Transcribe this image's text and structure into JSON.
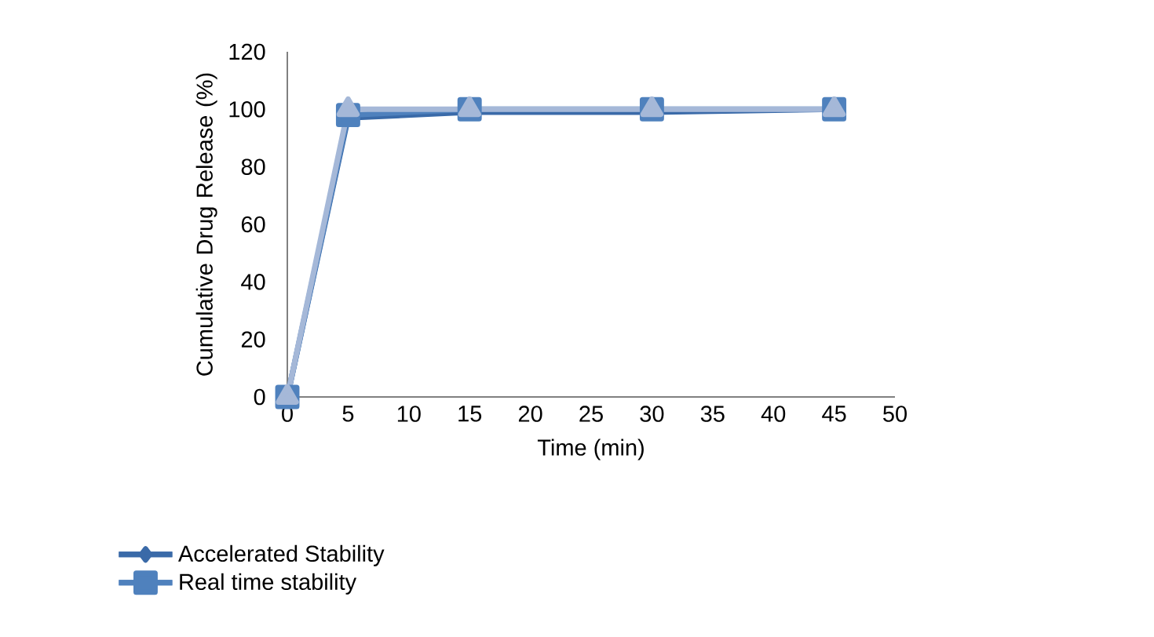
{
  "chart_data": {
    "type": "line",
    "xlabel": "Time (min)",
    "ylabel": "Cumulative Drug Release (%)",
    "x": [
      0,
      5,
      15,
      30,
      45
    ],
    "xlim": [
      0,
      50
    ],
    "xticks": [
      0,
      5,
      10,
      15,
      20,
      25,
      30,
      35,
      40,
      45,
      50
    ],
    "ylim": [
      0,
      120
    ],
    "yticks": [
      0,
      20,
      40,
      60,
      80,
      100,
      120
    ],
    "grid": false,
    "legend": "bottom left",
    "series": [
      {
        "name": "Accelerated Stability",
        "color": "#3a6aa8",
        "marker": "diamond",
        "values": [
          0,
          97,
          99,
          99,
          100
        ]
      },
      {
        "name": "Real time stability",
        "color": "#4f81bd",
        "marker": "square",
        "values": [
          0,
          98,
          100,
          100,
          100
        ]
      },
      {
        "color": "#a5b8d8",
        "marker": "triangle",
        "values": [
          0,
          100,
          100,
          100,
          100
        ]
      }
    ]
  }
}
